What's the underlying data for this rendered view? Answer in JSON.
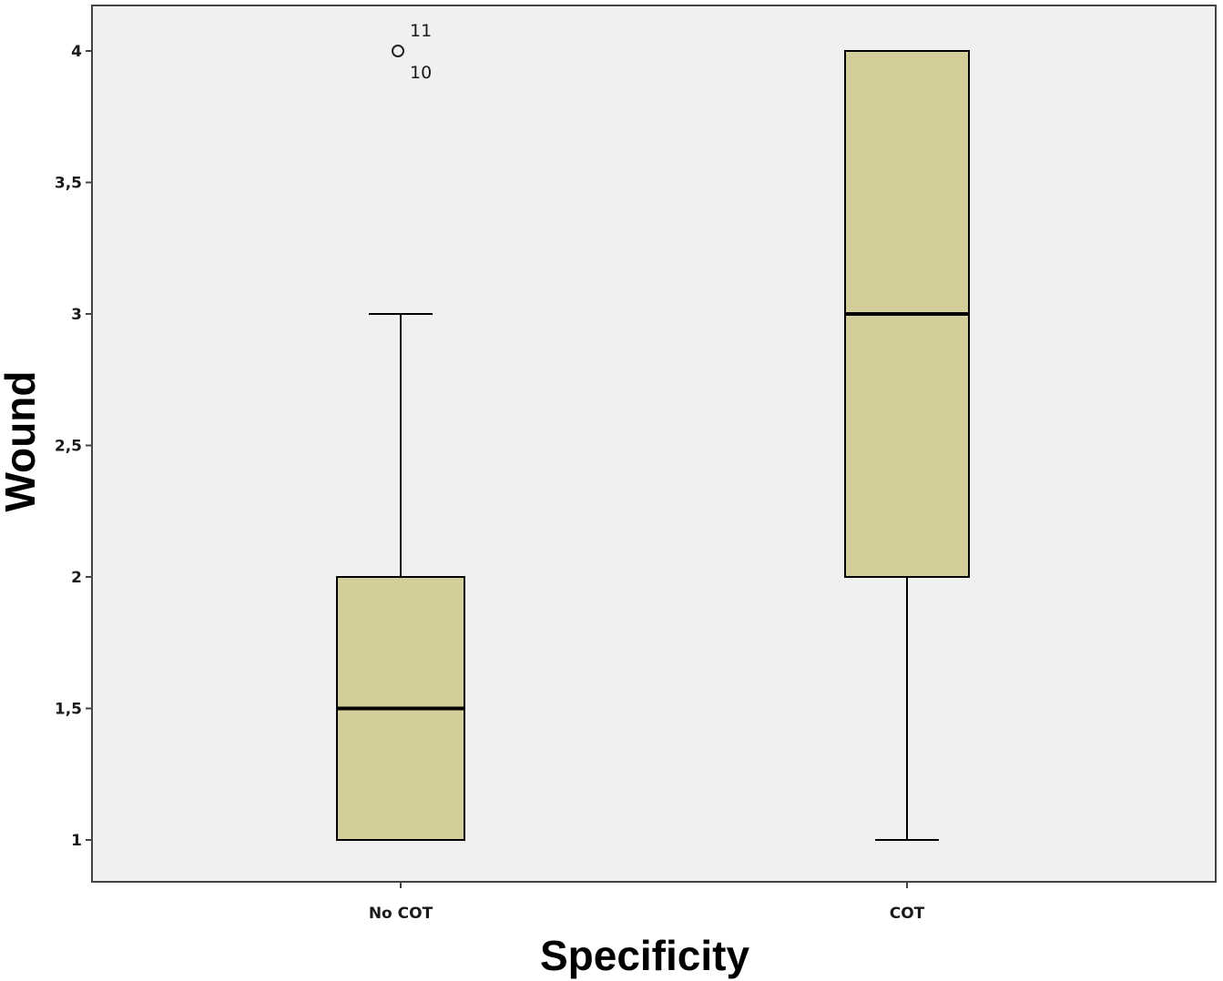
{
  "chart_data": {
    "type": "boxplot",
    "title": "",
    "xlabel": "Specificity",
    "ylabel": "Wound",
    "ylim": [
      0.84,
      4.16
    ],
    "yticks": [
      {
        "value": 1,
        "label": "1"
      },
      {
        "value": 1.5,
        "label": "1,5"
      },
      {
        "value": 2,
        "label": "2"
      },
      {
        "value": 2.5,
        "label": "2,5"
      },
      {
        "value": 3,
        "label": "3"
      },
      {
        "value": 3.5,
        "label": "3,5"
      },
      {
        "value": 4,
        "label": "4"
      }
    ],
    "categories": [
      "No COT",
      "COT"
    ],
    "boxes": [
      {
        "category": "No COT",
        "whisker_low": 1,
        "q1": 1,
        "median": 1.5,
        "q3": 2,
        "whisker_high": 3,
        "outliers": [
          {
            "value": 4,
            "labels": [
              "11",
              "10"
            ]
          }
        ]
      },
      {
        "category": "COT",
        "whisker_low": 1,
        "q1": 2,
        "median": 3,
        "q3": 4,
        "whisker_high": 4,
        "outliers": []
      }
    ],
    "colors": {
      "plot_background": "#f0f0f0",
      "box_fill": "#d4cf9a",
      "line": "#000000"
    },
    "grid": false,
    "legend": "none"
  }
}
